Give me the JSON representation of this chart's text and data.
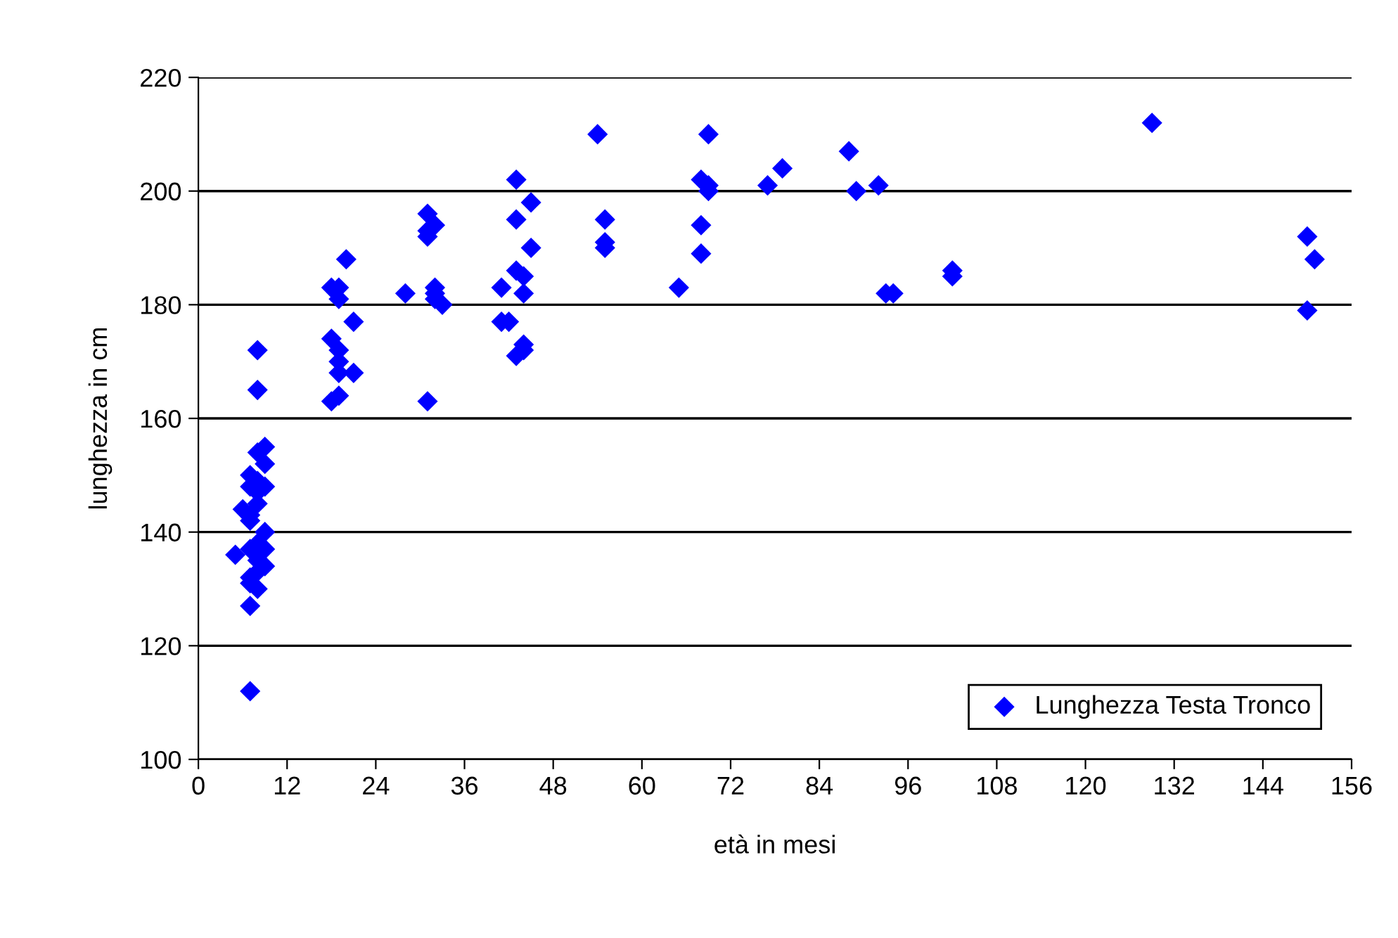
{
  "chart_data": {
    "type": "scatter",
    "xlabel": "età in mesi",
    "ylabel": "lunghezza in cm",
    "xlim": [
      0,
      156
    ],
    "xticks": [
      0,
      12,
      24,
      36,
      48,
      60,
      72,
      84,
      96,
      108,
      120,
      132,
      144,
      156
    ],
    "ylim": [
      100,
      220
    ],
    "yticks": [
      100,
      120,
      140,
      160,
      180,
      200,
      220
    ],
    "grid": "y",
    "legend": "bottom right",
    "marker": "diamond",
    "series": [
      {
        "name": "Lunghezza Testa Tronco",
        "color": "#0000ff",
        "x": [
          5,
          6,
          7,
          7,
          7,
          7,
          7,
          7,
          7,
          7,
          7,
          8,
          8,
          8,
          8,
          8,
          8,
          8,
          8,
          8,
          8,
          9,
          9,
          9,
          9,
          9,
          9,
          18,
          18,
          18,
          19,
          19,
          19,
          19,
          19,
          19,
          20,
          21,
          21,
          28,
          31,
          31,
          31,
          31,
          32,
          32,
          32,
          32,
          33,
          41,
          41,
          42,
          43,
          43,
          43,
          43,
          44,
          44,
          44,
          44,
          45,
          45,
          54,
          55,
          55,
          55,
          65,
          68,
          68,
          68,
          69,
          69,
          69,
          77,
          79,
          88,
          89,
          92,
          93,
          94,
          102,
          102,
          129,
          150,
          150,
          151
        ],
        "values": [
          136,
          144,
          150,
          148,
          143,
          142,
          137,
          132,
          131,
          127,
          112,
          149,
          147,
          145,
          138,
          135,
          133,
          130,
          154,
          165,
          172,
          155,
          152,
          148,
          140,
          137,
          134,
          183,
          174,
          163,
          183,
          181,
          172,
          170,
          168,
          164,
          188,
          177,
          168,
          182,
          196,
          193,
          192,
          163,
          194,
          183,
          182,
          181,
          180,
          183,
          177,
          177,
          202,
          195,
          186,
          171,
          185,
          182,
          172,
          173,
          198,
          190,
          210,
          195,
          191,
          190,
          183,
          202,
          194,
          189,
          210,
          201,
          200,
          201,
          204,
          207,
          200,
          201,
          182,
          182,
          186,
          185,
          212,
          192,
          179,
          188
        ]
      }
    ]
  }
}
